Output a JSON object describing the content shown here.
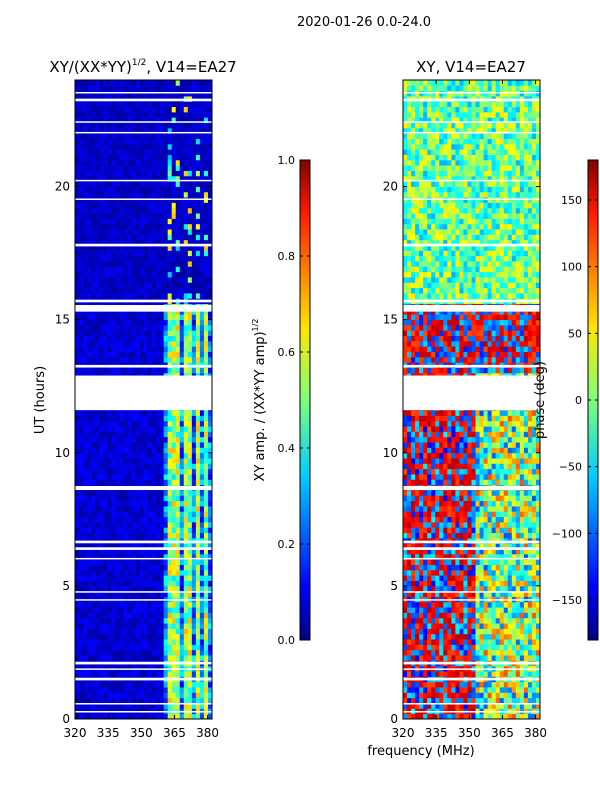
{
  "suptitle": "2020-01-26 0.0-24.0",
  "shared_xlabel": "frequency (MHz)",
  "chart_data": [
    {
      "type": "heatmap",
      "title_main": "XY/(XX*YY)",
      "title_exp": "1/2",
      "title_tail": ", V14=EA27",
      "xlabel": "frequency (MHz)",
      "ylabel": "UT (hours)",
      "x_ticks": [
        320,
        335,
        350,
        365,
        380
      ],
      "xlim": [
        320,
        382
      ],
      "y_ticks": [
        0,
        5,
        10,
        15,
        20
      ],
      "ylim": [
        0,
        24
      ],
      "colorbar": {
        "label_main": "XY amp. / (XX*YY amp)",
        "label_exp": "1/2",
        "ticks": [
          "0.0",
          "0.2",
          "0.4",
          "0.6",
          "0.8",
          "1.0"
        ],
        "range": [
          0,
          1
        ],
        "colormap": "jet"
      }
    },
    {
      "type": "heatmap",
      "title": "XY, V14=EA27",
      "xlabel": "frequency (MHz)",
      "ylabel": "",
      "x_ticks": [
        320,
        335,
        350,
        365,
        380
      ],
      "xlim": [
        320,
        382
      ],
      "y_ticks": [
        0,
        5,
        10,
        15,
        20
      ],
      "ylim": [
        0,
        24
      ],
      "colorbar": {
        "label": "phase (deg)",
        "ticks": [
          "150",
          "100",
          "50",
          "0",
          "−50",
          "−100",
          "−150"
        ],
        "tick_values": [
          150,
          100,
          50,
          0,
          -50,
          -100,
          -150
        ],
        "range": [
          -180,
          180
        ],
        "colormap": "jet"
      }
    }
  ],
  "flagged_ut_ranges": [
    [
      0.25,
      0.3
    ],
    [
      0.55,
      0.6
    ],
    [
      1.45,
      1.55
    ],
    [
      1.85,
      1.9
    ],
    [
      2.05,
      2.15
    ],
    [
      4.45,
      4.5
    ],
    [
      4.75,
      4.8
    ],
    [
      6.0,
      6.05
    ],
    [
      6.35,
      6.45
    ],
    [
      6.6,
      6.7
    ],
    [
      8.6,
      8.75
    ],
    [
      11.6,
      12.9
    ],
    [
      13.2,
      13.3
    ],
    [
      15.3,
      15.55
    ],
    [
      15.65,
      15.75
    ],
    [
      17.75,
      17.85
    ],
    [
      19.5,
      19.55
    ],
    [
      20.2,
      20.25
    ],
    [
      22.0,
      22.05
    ],
    [
      22.4,
      22.45
    ],
    [
      23.2,
      23.3
    ],
    [
      23.5,
      23.55
    ]
  ],
  "hot_freq_bands_mhz": [
    [
      362,
      367
    ],
    [
      369,
      372
    ],
    [
      374,
      377
    ],
    [
      378,
      380
    ]
  ]
}
